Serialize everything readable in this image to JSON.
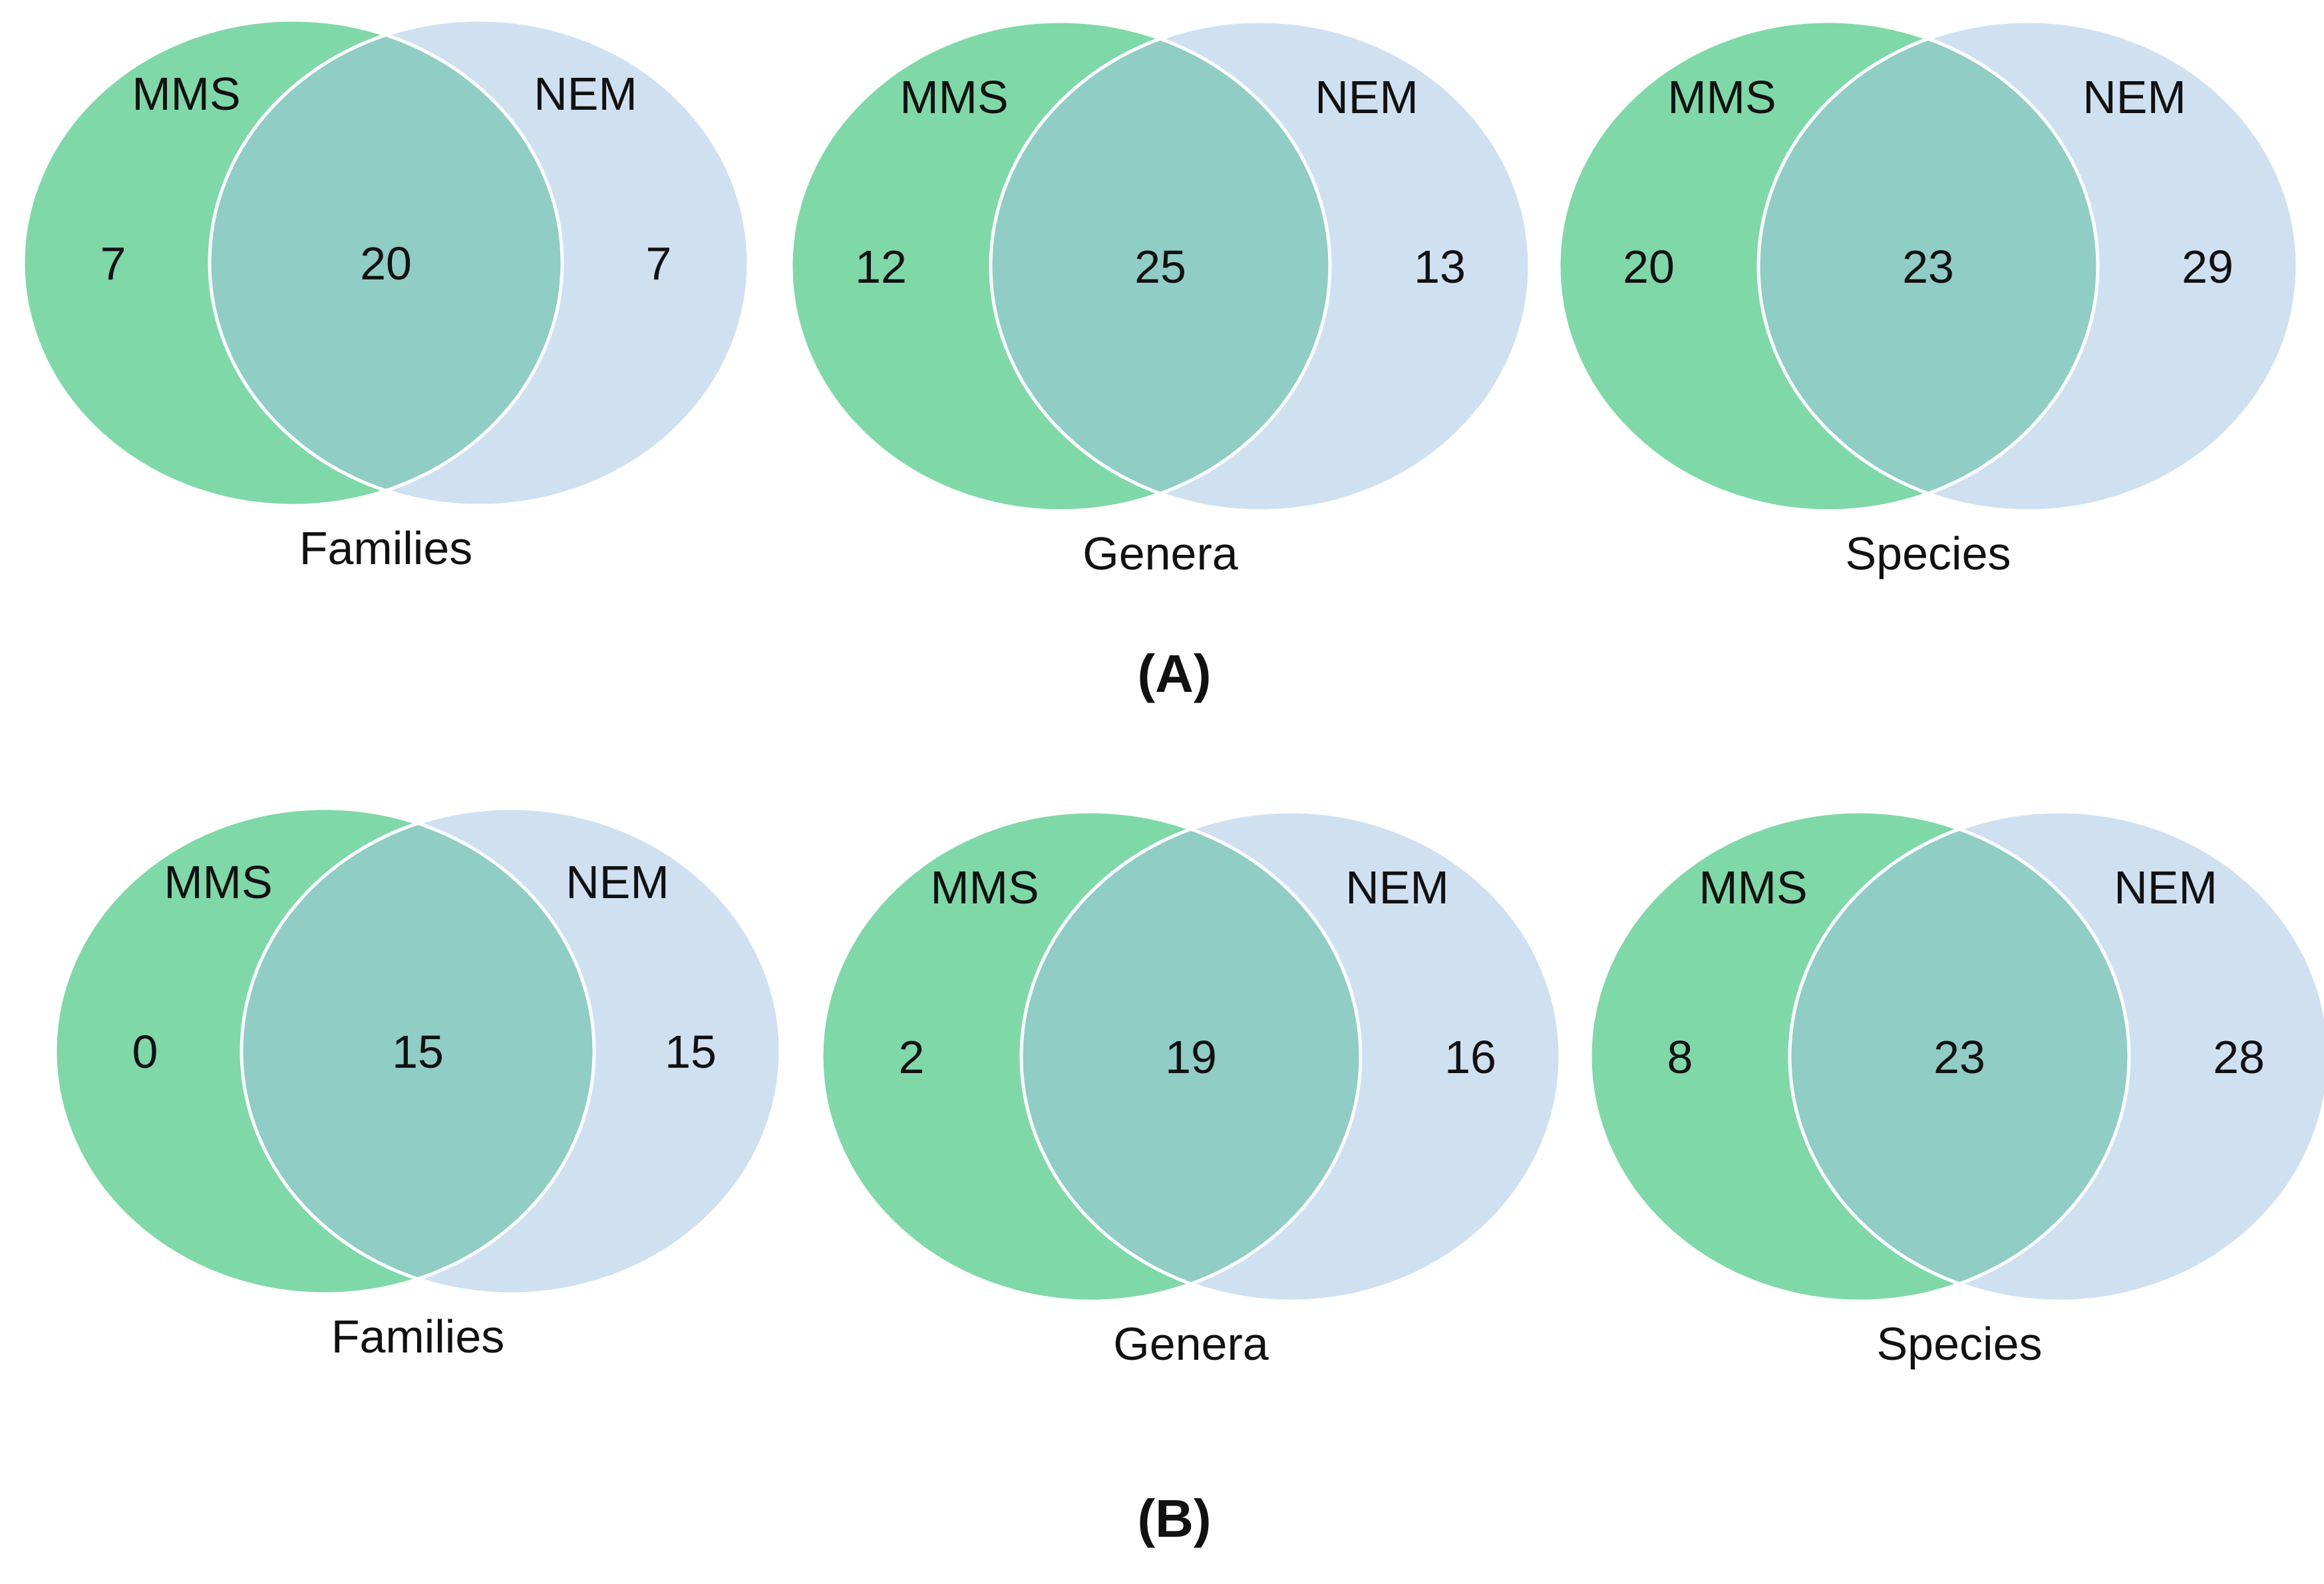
{
  "panels": [
    {
      "label": "(A)",
      "diagrams": [
        {
          "category": "Families",
          "left_label": "MMS",
          "right_label": "NEM",
          "left_only": "7",
          "both": "20",
          "right_only": "7"
        },
        {
          "category": "Genera",
          "left_label": "MMS",
          "right_label": "NEM",
          "left_only": "12",
          "both": "25",
          "right_only": "13"
        },
        {
          "category": "Species",
          "left_label": "MMS",
          "right_label": "NEM",
          "left_only": "20",
          "both": "23",
          "right_only": "29"
        }
      ]
    },
    {
      "label": "(B)",
      "diagrams": [
        {
          "category": "Families",
          "left_label": "MMS",
          "right_label": "NEM",
          "left_only": "0",
          "both": "15",
          "right_only": "15"
        },
        {
          "category": "Genera",
          "left_label": "MMS",
          "right_label": "NEM",
          "left_only": "2",
          "both": "19",
          "right_only": "16"
        },
        {
          "category": "Species",
          "left_label": "MMS",
          "right_label": "NEM",
          "left_only": "8",
          "both": "23",
          "right_only": "28"
        }
      ]
    }
  ],
  "colors": {
    "left_fill": "#7fd8a8",
    "right_fill": "#cfe0f1",
    "overlap_fill": "#8fcdc5",
    "outline": "#ffffff"
  }
}
